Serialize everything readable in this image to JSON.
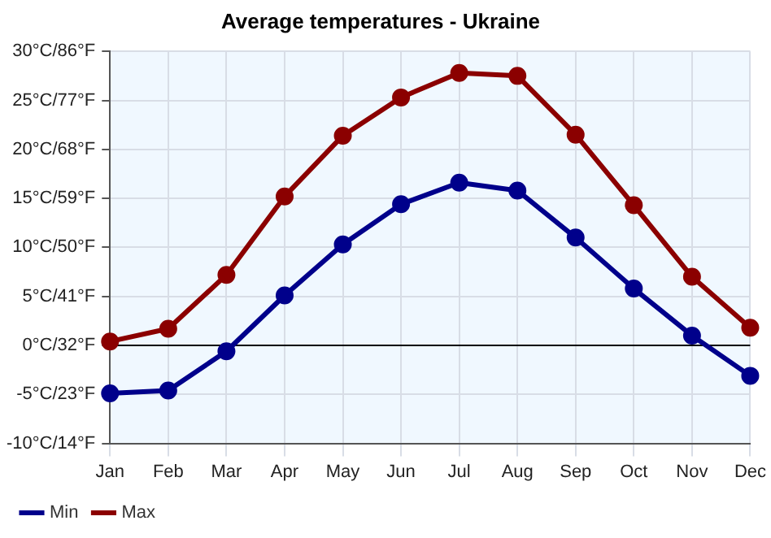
{
  "chart_data": {
    "type": "line",
    "title": "Average temperatures - Ukraine",
    "categories": [
      "Jan",
      "Feb",
      "Mar",
      "Apr",
      "May",
      "Jun",
      "Jul",
      "Aug",
      "Sep",
      "Oct",
      "Nov",
      "Dec"
    ],
    "series": [
      {
        "name": "Min",
        "color": "#00008b",
        "values": [
          -4.9,
          -4.6,
          -0.6,
          5.1,
          10.3,
          14.4,
          16.6,
          15.8,
          11.0,
          5.8,
          1.0,
          -3.1
        ]
      },
      {
        "name": "Max",
        "color": "#8b0000",
        "values": [
          0.4,
          1.7,
          7.2,
          15.2,
          21.4,
          25.3,
          27.8,
          27.5,
          21.5,
          14.3,
          7.0,
          1.8
        ]
      }
    ],
    "ylim": [
      -10,
      30
    ],
    "yticks": [
      {
        "value": -10,
        "label": "-10°C/"
      },
      {
        "value": -5,
        "label": "-5°C/"
      },
      {
        "value": 0,
        "label": "0°C/"
      },
      {
        "value": 5,
        "label": "5°C/"
      },
      {
        "value": 10,
        "label": "10°C/"
      },
      {
        "value": 15,
        "label": "15°C/"
      },
      {
        "value": 20,
        "label": "20°C/"
      },
      {
        "value": 25,
        "label": "25°C/"
      },
      {
        "value": 30,
        "label": "30°C/"
      }
    ],
    "y2lim": [
      14,
      86
    ],
    "y2ticks": [
      {
        "value": 14,
        "label": "14°F"
      },
      {
        "value": 23,
        "label": "23°F"
      },
      {
        "value": 32,
        "label": "32°F"
      },
      {
        "value": 41,
        "label": "41°F"
      },
      {
        "value": 50,
        "label": "50°F"
      },
      {
        "value": 59,
        "label": "59°F"
      },
      {
        "value": 68,
        "label": "68°F"
      },
      {
        "value": 77,
        "label": "77°F"
      },
      {
        "value": 86,
        "label": "86°F"
      }
    ],
    "ref_lines": [
      {
        "axis": "y",
        "value": 0,
        "color": "#000000"
      }
    ],
    "grid": true,
    "legend": "bottom left",
    "marker": "circle",
    "line_style": "solid"
  }
}
